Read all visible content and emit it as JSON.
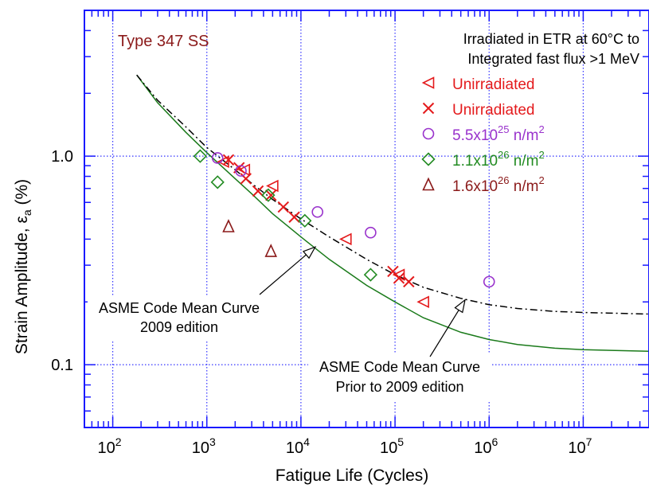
{
  "chart_data": {
    "type": "scatter",
    "xscale": "log",
    "yscale": "log",
    "xlim": [
      50,
      50000000
    ],
    "ylim": [
      0.05,
      5
    ],
    "xlabel": "Fatigue Life (Cycles)",
    "ylabel": "Strain Amplitude,  ε",
    "ylabel_sub": "a",
    "ylabel_unit": " (%)",
    "xticks": [
      {
        "value": 100,
        "mant": "10",
        "exp": "2"
      },
      {
        "value": 1000,
        "mant": "10",
        "exp": "3"
      },
      {
        "value": 10000,
        "mant": "10",
        "exp": "4"
      },
      {
        "value": 100000,
        "mant": "10",
        "exp": "5"
      },
      {
        "value": 1000000,
        "mant": "10",
        "exp": "6"
      },
      {
        "value": 10000000,
        "mant": "10",
        "exp": "7"
      }
    ],
    "yticks": [
      {
        "value": 0.1,
        "label": "0.1"
      },
      {
        "value": 1.0,
        "label": "1.0"
      }
    ],
    "material_label": "Type 347 SS",
    "header_lines": [
      "Irradiated in ETR at 60°C to",
      "Integrated fast flux >1 MeV"
    ],
    "series": [
      {
        "name": "Unirradiated",
        "marker": "triangle-left",
        "color": "#e41a1c",
        "points": [
          [
            1500,
            0.94
          ],
          [
            2500,
            0.86
          ],
          [
            5000,
            0.72
          ],
          [
            30000,
            0.4
          ],
          [
            110000,
            0.27
          ],
          [
            200000,
            0.2
          ]
        ]
      },
      {
        "name": "Unirradiated",
        "marker": "x",
        "color": "#e41a1c",
        "points": [
          [
            1700,
            0.96
          ],
          [
            2200,
            0.88
          ],
          [
            2600,
            0.78
          ],
          [
            3500,
            0.68
          ],
          [
            4800,
            0.65
          ],
          [
            6500,
            0.57
          ],
          [
            8500,
            0.51
          ],
          [
            95000,
            0.28
          ],
          [
            110000,
            0.26
          ],
          [
            140000,
            0.25
          ]
        ]
      },
      {
        "name_prefix": "5.5x10",
        "name_exp": "25",
        "name_suffix": " n/m",
        "name_sup2": "2",
        "marker": "circle",
        "color": "#9932cc",
        "points": [
          [
            1300,
            0.98
          ],
          [
            2300,
            0.85
          ],
          [
            15000,
            0.54
          ],
          [
            55000,
            0.43
          ],
          [
            1000000,
            0.25
          ]
        ]
      },
      {
        "name_prefix": "1.1x10",
        "name_exp": "26",
        "name_suffix": " n/m",
        "name_sup2": "2",
        "marker": "diamond",
        "color": "#228b22",
        "points": [
          [
            850,
            1.0
          ],
          [
            1300,
            0.75
          ],
          [
            4500,
            0.65
          ],
          [
            11000,
            0.49
          ],
          [
            55000,
            0.27
          ]
        ]
      },
      {
        "name_prefix": "1.6x10",
        "name_exp": "26",
        "name_suffix": " n/m",
        "name_sup2": "2",
        "marker": "triangle-up",
        "color": "#8b1a1a",
        "points": [
          [
            1700,
            0.46
          ],
          [
            4800,
            0.35
          ]
        ]
      }
    ],
    "curves": [
      {
        "style": "solid",
        "color": "#1a7a1a",
        "points": [
          [
            180,
            2.45
          ],
          [
            300,
            1.8
          ],
          [
            600,
            1.3
          ],
          [
            1000,
            1.04
          ],
          [
            2000,
            0.78
          ],
          [
            3000,
            0.66
          ],
          [
            5000,
            0.53
          ],
          [
            10000,
            0.41
          ],
          [
            20000,
            0.32
          ],
          [
            50000,
            0.24
          ],
          [
            100000,
            0.2
          ],
          [
            200000,
            0.168
          ],
          [
            500000,
            0.143
          ],
          [
            1000000,
            0.132
          ],
          [
            2000000,
            0.125
          ],
          [
            5000000,
            0.12
          ],
          [
            10000000,
            0.118
          ],
          [
            50000000,
            0.116
          ]
        ]
      },
      {
        "style": "dashdot",
        "color": "#000000",
        "points": [
          [
            180,
            2.45
          ],
          [
            300,
            1.85
          ],
          [
            600,
            1.38
          ],
          [
            1000,
            1.1
          ],
          [
            2000,
            0.86
          ],
          [
            3000,
            0.74
          ],
          [
            5000,
            0.62
          ],
          [
            10000,
            0.5
          ],
          [
            20000,
            0.41
          ],
          [
            50000,
            0.32
          ],
          [
            100000,
            0.27
          ],
          [
            200000,
            0.235
          ],
          [
            500000,
            0.208
          ],
          [
            1000000,
            0.194
          ],
          [
            2000000,
            0.186
          ],
          [
            5000000,
            0.18
          ],
          [
            10000000,
            0.178
          ],
          [
            50000000,
            0.175
          ]
        ]
      }
    ],
    "annotations": [
      {
        "lines": [
          "ASME Code Mean Curve",
          "2009 edition"
        ],
        "arrow_to": [
          10000,
          0.38
        ]
      },
      {
        "lines": [
          "ASME Code Mean Curve",
          "Prior to 2009 edition"
        ],
        "arrow_to": [
          600000,
          0.21
        ]
      }
    ]
  }
}
